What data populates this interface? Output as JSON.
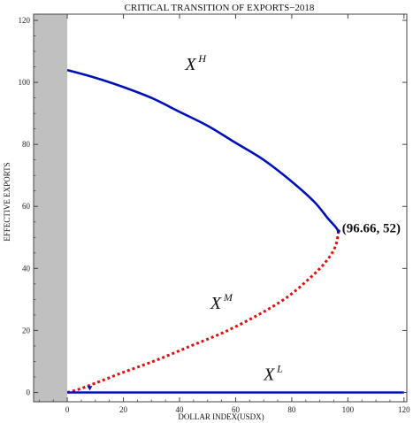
{
  "chart_data": {
    "type": "line",
    "title": "CRITICAL TRANSITION OF EXPORTS−2018",
    "xlabel": "DOLLAR INDEX(USDX)",
    "ylabel": "EFFECTIVE  EXPORTS",
    "xlim": [
      -12,
      121
    ],
    "ylim": [
      -3,
      122
    ],
    "x_ticks": [
      0,
      20,
      40,
      60,
      80,
      100,
      120
    ],
    "y_ticks": [
      0,
      20,
      40,
      60,
      80,
      100,
      120
    ],
    "grid": false,
    "shaded_region": {
      "x": [
        -12,
        0
      ],
      "color": "#c0c0c0"
    },
    "series": [
      {
        "name": "X^H",
        "label_main": "X",
        "label_sup": "H",
        "style": "solid",
        "color": "#0010b8",
        "x": [
          0,
          10,
          20,
          30,
          40,
          50,
          60,
          70,
          80,
          88,
          93,
          95.5,
          96.66
        ],
        "y": [
          104,
          101.5,
          98.5,
          95,
          90.5,
          86,
          80.5,
          75,
          68,
          61.5,
          56,
          53.5,
          52
        ]
      },
      {
        "name": "X^M",
        "label_main": "X",
        "label_sup": "M",
        "style": "dotted",
        "color": "#e01010",
        "x": [
          96.66,
          95.5,
          92,
          86,
          78,
          68,
          56,
          44,
          32,
          20,
          10,
          4,
          0
        ],
        "y": [
          52,
          47,
          42,
          36.5,
          30.5,
          25,
          19.5,
          15,
          10.5,
          6.5,
          3,
          1,
          0
        ]
      },
      {
        "name": "X^L",
        "label_main": "X",
        "label_sup": "L",
        "style": "solid",
        "color": "#0010b8",
        "x": [
          0,
          120
        ],
        "y": [
          0,
          0
        ]
      }
    ],
    "annotations": [
      {
        "text": "(96.66, 52)",
        "x": 96.66,
        "y": 52
      }
    ]
  }
}
